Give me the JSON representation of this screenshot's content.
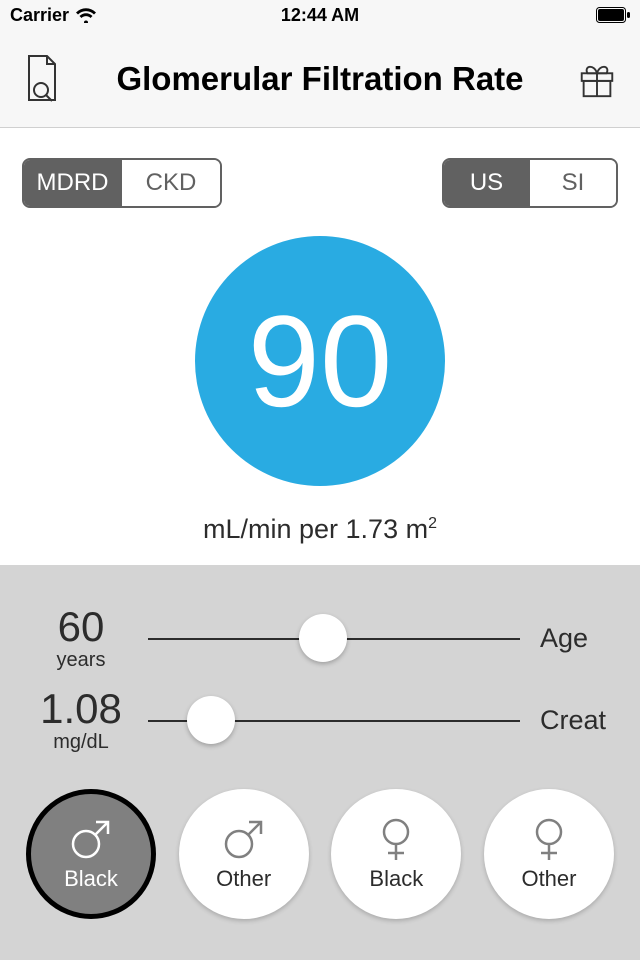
{
  "status_bar": {
    "carrier": "Carrier",
    "time": "12:44 AM"
  },
  "nav": {
    "title": "Glomerular Filtration Rate"
  },
  "segments": {
    "formula": {
      "a": "MDRD",
      "b": "CKD",
      "selected": "a"
    },
    "units": {
      "a": "US",
      "b": "SI",
      "selected": "a"
    }
  },
  "result": {
    "value": "90",
    "unit_prefix": "mL/min per 1.73 m",
    "unit_exp": "2",
    "circle_color": "#29abe2"
  },
  "sliders": {
    "age": {
      "value": "60",
      "unit": "years",
      "label": "Age",
      "thumb_pct": 47
    },
    "creat": {
      "value": "1.08",
      "unit": "mg/dL",
      "label": "Creat",
      "thumb_pct": 17
    }
  },
  "demographics": [
    {
      "sex": "male",
      "race": "Black",
      "selected": true
    },
    {
      "sex": "male",
      "race": "Other",
      "selected": false
    },
    {
      "sex": "female",
      "race": "Black",
      "selected": false
    },
    {
      "sex": "female",
      "race": "Other",
      "selected": false
    }
  ],
  "colors": {
    "panel_bg": "#d4d4d4",
    "segment_dark": "#616161",
    "text": "#2c2c2c"
  }
}
